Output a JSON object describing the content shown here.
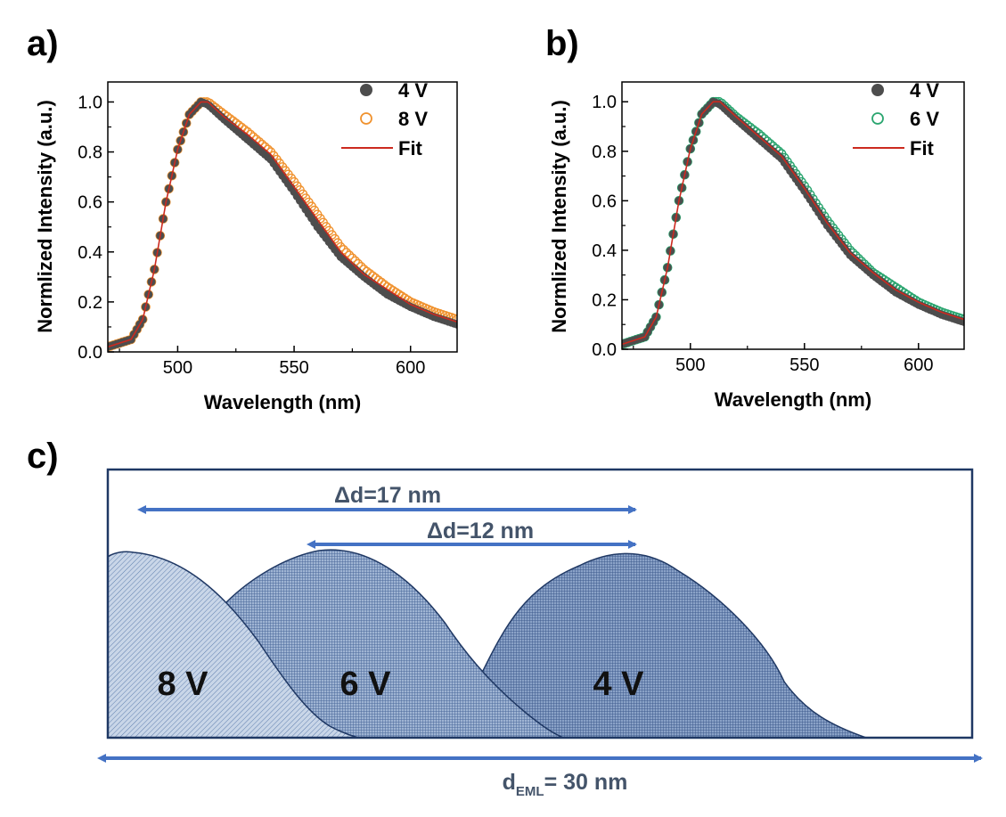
{
  "panel_a": {
    "label": "a)",
    "legend": {
      "s1": "4 V",
      "s2": "8 V",
      "fit": "Fit"
    }
  },
  "panel_b": {
    "label": "b)",
    "legend": {
      "s1": "4 V",
      "s2": "6 V",
      "fit": "Fit"
    }
  },
  "panel_c": {
    "label": "c)",
    "arrow_17": "Δd=17 nm",
    "arrow_12": "Δd=12 nm",
    "zone_8v": "8 V",
    "zone_6v": "6 V",
    "zone_4v": "4 V",
    "deml_prefix": "d",
    "deml_sub": "EML",
    "deml_suffix": "= 30 nm"
  },
  "colors": {
    "series_4v": "#4d4d4d",
    "series_8v": "#f0922e",
    "series_6v": "#2aa56f",
    "fit": "#cc2a1f",
    "arrow": "#4472c4",
    "zone_fill": "#6f8fb8",
    "zone_stroke": "#1f3864"
  },
  "chart_data": [
    {
      "type": "scatter",
      "xlabel": "Wavelength (nm)",
      "ylabel": "Normlized Intensity (a.u.)",
      "xlim": [
        470,
        620
      ],
      "ylim": [
        0,
        1.08
      ],
      "xticks": [
        500,
        550,
        600
      ],
      "yticks": [
        0.0,
        0.2,
        0.4,
        0.6,
        0.8,
        1.0
      ],
      "legend_position": "top-right",
      "series": [
        {
          "name": "4 V",
          "marker": "filled-circle",
          "x": [
            470,
            480,
            485,
            490,
            495,
            500,
            505,
            510,
            513,
            520,
            530,
            540,
            550,
            560,
            570,
            580,
            590,
            600,
            610,
            620
          ],
          "values": [
            0.02,
            0.05,
            0.13,
            0.33,
            0.6,
            0.81,
            0.95,
            1.0,
            0.99,
            0.93,
            0.85,
            0.77,
            0.64,
            0.5,
            0.38,
            0.3,
            0.23,
            0.18,
            0.14,
            0.11
          ]
        },
        {
          "name": "8 V",
          "marker": "open-circle",
          "x": [
            470,
            480,
            485,
            490,
            495,
            500,
            505,
            510,
            513,
            520,
            530,
            540,
            550,
            560,
            570,
            580,
            590,
            600,
            610,
            620
          ],
          "values": [
            0.02,
            0.05,
            0.13,
            0.33,
            0.6,
            0.81,
            0.95,
            1.0,
            1.0,
            0.95,
            0.88,
            0.8,
            0.68,
            0.55,
            0.42,
            0.33,
            0.26,
            0.2,
            0.16,
            0.13
          ]
        },
        {
          "name": "Fit",
          "marker": "line",
          "x": [
            470,
            480,
            485,
            490,
            495,
            500,
            505,
            510,
            513,
            520,
            530,
            540,
            550,
            560,
            570,
            580,
            590,
            600,
            610,
            620
          ],
          "values": [
            0.02,
            0.05,
            0.13,
            0.33,
            0.6,
            0.81,
            0.95,
            1.0,
            1.0,
            0.94,
            0.87,
            0.79,
            0.66,
            0.53,
            0.4,
            0.31,
            0.25,
            0.19,
            0.15,
            0.12
          ]
        }
      ]
    },
    {
      "type": "scatter",
      "xlabel": "Wavelength (nm)",
      "ylabel": "Normlized Intensity (a.u.)",
      "xlim": [
        470,
        620
      ],
      "ylim": [
        0,
        1.08
      ],
      "xticks": [
        500,
        550,
        600
      ],
      "yticks": [
        0.0,
        0.2,
        0.4,
        0.6,
        0.8,
        1.0
      ],
      "legend_position": "top-right",
      "series": [
        {
          "name": "4 V",
          "marker": "filled-circle",
          "x": [
            470,
            480,
            485,
            490,
            495,
            500,
            505,
            510,
            513,
            520,
            530,
            540,
            550,
            560,
            570,
            580,
            590,
            600,
            610,
            620
          ],
          "values": [
            0.02,
            0.05,
            0.13,
            0.33,
            0.6,
            0.81,
            0.95,
            1.0,
            0.99,
            0.93,
            0.85,
            0.77,
            0.64,
            0.5,
            0.38,
            0.3,
            0.23,
            0.18,
            0.14,
            0.11
          ]
        },
        {
          "name": "6 V",
          "marker": "open-circle",
          "x": [
            470,
            480,
            485,
            490,
            495,
            500,
            505,
            510,
            513,
            520,
            530,
            540,
            550,
            560,
            570,
            580,
            590,
            600,
            610,
            620
          ],
          "values": [
            0.02,
            0.05,
            0.13,
            0.33,
            0.6,
            0.81,
            0.95,
            1.0,
            1.0,
            0.94,
            0.87,
            0.79,
            0.66,
            0.52,
            0.4,
            0.31,
            0.25,
            0.19,
            0.15,
            0.12
          ]
        },
        {
          "name": "Fit",
          "marker": "line",
          "x": [
            470,
            480,
            485,
            490,
            495,
            500,
            505,
            510,
            513,
            520,
            530,
            540,
            550,
            560,
            570,
            580,
            590,
            600,
            610,
            620
          ],
          "values": [
            0.02,
            0.05,
            0.13,
            0.33,
            0.6,
            0.81,
            0.95,
            1.0,
            1.0,
            0.94,
            0.86,
            0.78,
            0.65,
            0.51,
            0.39,
            0.31,
            0.24,
            0.19,
            0.15,
            0.12
          ]
        }
      ]
    }
  ]
}
